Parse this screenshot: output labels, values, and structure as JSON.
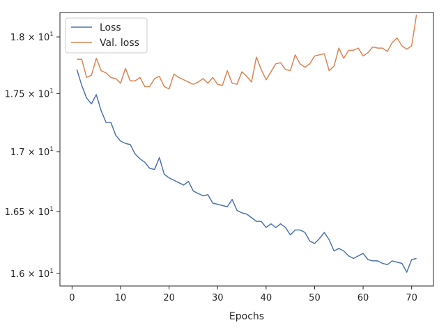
{
  "chart_data": {
    "type": "line",
    "title": "",
    "xlabel": "Epochs",
    "ylabel": "",
    "xlim": [
      -2.5,
      74.5
    ],
    "ylim": [
      1.59,
      1.822
    ],
    "y_scale": "log",
    "grid": false,
    "legend_position": "top-left",
    "x_ticks": [
      {
        "value": 0,
        "label": "0"
      },
      {
        "value": 10,
        "label": "10"
      },
      {
        "value": 20,
        "label": "20"
      },
      {
        "value": 30,
        "label": "30"
      },
      {
        "value": 40,
        "label": "40"
      },
      {
        "value": 50,
        "label": "50"
      },
      {
        "value": 60,
        "label": "60"
      },
      {
        "value": 70,
        "label": "70"
      }
    ],
    "y_ticks": [
      {
        "value": 1.6,
        "mantissa": "1.6",
        "exp_base": "10",
        "exp": "1"
      },
      {
        "value": 1.65,
        "mantissa": "1.65",
        "exp_base": "10",
        "exp": "1"
      },
      {
        "value": 1.7,
        "mantissa": "1.7",
        "exp_base": "10",
        "exp": "1"
      },
      {
        "value": 1.75,
        "mantissa": "1.75",
        "exp_base": "10",
        "exp": "1"
      },
      {
        "value": 1.8,
        "mantissa": "1.8",
        "exp_base": "10",
        "exp": "1"
      }
    ],
    "x": [
      1,
      2,
      3,
      4,
      5,
      6,
      7,
      8,
      9,
      10,
      11,
      12,
      13,
      14,
      15,
      16,
      17,
      18,
      19,
      20,
      21,
      22,
      23,
      24,
      25,
      26,
      27,
      28,
      29,
      30,
      31,
      32,
      33,
      34,
      35,
      36,
      37,
      38,
      39,
      40,
      41,
      42,
      43,
      44,
      45,
      46,
      47,
      48,
      49,
      50,
      51,
      52,
      53,
      54,
      55,
      56,
      57,
      58,
      59,
      60,
      61,
      62,
      63,
      64,
      65,
      66,
      67,
      68,
      69,
      70,
      71
    ],
    "series": [
      {
        "name": "Loss",
        "color": "#4c72b0",
        "values": [
          1.771,
          1.757,
          1.746,
          1.741,
          1.749,
          1.735,
          1.725,
          1.725,
          1.714,
          1.709,
          1.707,
          1.706,
          1.698,
          1.694,
          1.691,
          1.686,
          1.685,
          1.695,
          1.681,
          1.678,
          1.676,
          1.674,
          1.672,
          1.675,
          1.667,
          1.665,
          1.663,
          1.664,
          1.657,
          1.656,
          1.655,
          1.654,
          1.66,
          1.651,
          1.649,
          1.648,
          1.645,
          1.642,
          1.642,
          1.637,
          1.64,
          1.637,
          1.64,
          1.637,
          1.631,
          1.635,
          1.635,
          1.633,
          1.626,
          1.624,
          1.628,
          1.633,
          1.627,
          1.618,
          1.62,
          1.618,
          1.614,
          1.612,
          1.614,
          1.616,
          1.611,
          1.61,
          1.61,
          1.608,
          1.607,
          1.61,
          1.609,
          1.608,
          1.601,
          1.611,
          1.612
        ]
      },
      {
        "name": "Val. loss",
        "color": "#dd8452",
        "values": [
          1.78,
          1.78,
          1.764,
          1.766,
          1.781,
          1.77,
          1.768,
          1.764,
          1.763,
          1.759,
          1.772,
          1.761,
          1.761,
          1.764,
          1.756,
          1.756,
          1.763,
          1.765,
          1.756,
          1.754,
          1.767,
          1.764,
          1.762,
          1.76,
          1.758,
          1.76,
          1.763,
          1.759,
          1.764,
          1.758,
          1.757,
          1.77,
          1.759,
          1.758,
          1.769,
          1.765,
          1.76,
          1.782,
          1.771,
          1.762,
          1.769,
          1.776,
          1.777,
          1.771,
          1.77,
          1.784,
          1.776,
          1.773,
          1.776,
          1.783,
          1.784,
          1.785,
          1.77,
          1.774,
          1.79,
          1.781,
          1.788,
          1.788,
          1.79,
          1.783,
          1.786,
          1.791,
          1.79,
          1.79,
          1.787,
          1.795,
          1.799,
          1.792,
          1.789,
          1.792,
          1.82
        ]
      }
    ]
  }
}
